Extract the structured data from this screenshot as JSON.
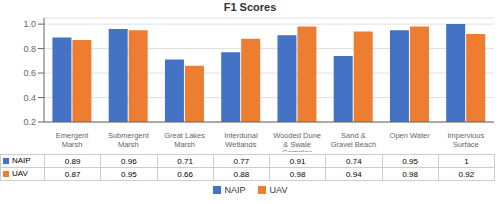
{
  "chart_data": {
    "type": "bar",
    "title": "F1 Scores",
    "categories": [
      "Emergent\nMarsh",
      "Submergent\nMarsh",
      "Great Lakes\nMarsh",
      "Interdunal\nWetlands",
      "Wooded Dune\n& Swale\nComplex",
      "Sand &\nGravel Beach",
      "Open Water",
      "Impervious\nSurface"
    ],
    "series": [
      {
        "name": "NAIP",
        "color": "#4472C4",
        "values": [
          0.89,
          0.96,
          0.71,
          0.77,
          0.91,
          0.74,
          0.95,
          1.0
        ]
      },
      {
        "name": "UAV",
        "color": "#ED7D31",
        "values": [
          0.87,
          0.95,
          0.66,
          0.88,
          0.98,
          0.94,
          0.98,
          0.92
        ]
      }
    ],
    "ylim": [
      0.2,
      1.05
    ],
    "yticks": [
      0.2,
      0.4,
      0.6,
      0.8,
      {
        "value": 1.0,
        "label": "1.0"
      }
    ],
    "grid": true,
    "legend": "bottom"
  }
}
